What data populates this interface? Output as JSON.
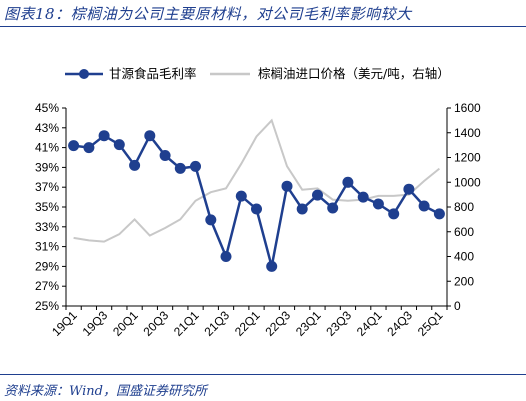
{
  "header": {
    "title": "图表18：棕榈油为公司主要原材料，对公司毛利率影响较大"
  },
  "footer": {
    "source": "资料来源：Wind，国盛证券研究所"
  },
  "colors": {
    "primary_series": "#1f3f8f",
    "secondary_series": "#c8c8c8",
    "axis": "#000000"
  },
  "chart_data": {
    "type": "line",
    "title": "",
    "x": [
      "19Q1",
      "19Q2",
      "19Q3",
      "19Q4",
      "20Q1",
      "20Q2",
      "20Q3",
      "20Q4",
      "21Q1",
      "21Q2",
      "21Q3",
      "21Q4",
      "22Q1",
      "22Q2",
      "22Q3",
      "22Q4",
      "23Q1",
      "23Q2",
      "23Q3",
      "23Q4",
      "24Q1",
      "24Q2",
      "24Q3",
      "24Q4",
      "25Q1"
    ],
    "x_tick_labels": [
      "19Q1",
      "",
      "19Q3",
      "",
      "20Q1",
      "",
      "20Q3",
      "",
      "21Q1",
      "",
      "21Q3",
      "",
      "22Q1",
      "",
      "22Q3",
      "",
      "23Q1",
      "",
      "23Q3",
      "",
      "24Q1",
      "",
      "24Q3",
      "",
      "25Q1"
    ],
    "series": [
      {
        "name": "甘源食品毛利率",
        "axis": "left",
        "marker": "circle",
        "values": [
          41.2,
          41.0,
          42.2,
          41.3,
          39.2,
          42.2,
          40.2,
          38.9,
          39.1,
          33.7,
          30.0,
          36.1,
          34.8,
          29.0,
          37.1,
          34.8,
          36.2,
          34.9,
          37.5,
          36.0,
          35.3,
          34.3,
          36.8,
          35.1,
          34.3
        ]
      },
      {
        "name": "棕榈油进口价格（美元/吨，右轴）",
        "axis": "right",
        "marker": "none",
        "values": [
          550,
          530,
          520,
          580,
          700,
          570,
          630,
          700,
          850,
          920,
          950,
          1150,
          1370,
          1500,
          1130,
          940,
          950,
          860,
          850,
          860,
          890,
          890,
          900,
          1010,
          1110
        ]
      }
    ],
    "y_left": {
      "min": 25,
      "max": 45,
      "ticks": [
        "25%",
        "27%",
        "29%",
        "31%",
        "33%",
        "35%",
        "37%",
        "39%",
        "41%",
        "43%",
        "45%"
      ]
    },
    "y_right": {
      "min": 0,
      "max": 1600,
      "ticks": [
        "0",
        "200",
        "400",
        "600",
        "800",
        "1000",
        "1200",
        "1400",
        "1600"
      ]
    },
    "grid": false,
    "legend": "top"
  }
}
